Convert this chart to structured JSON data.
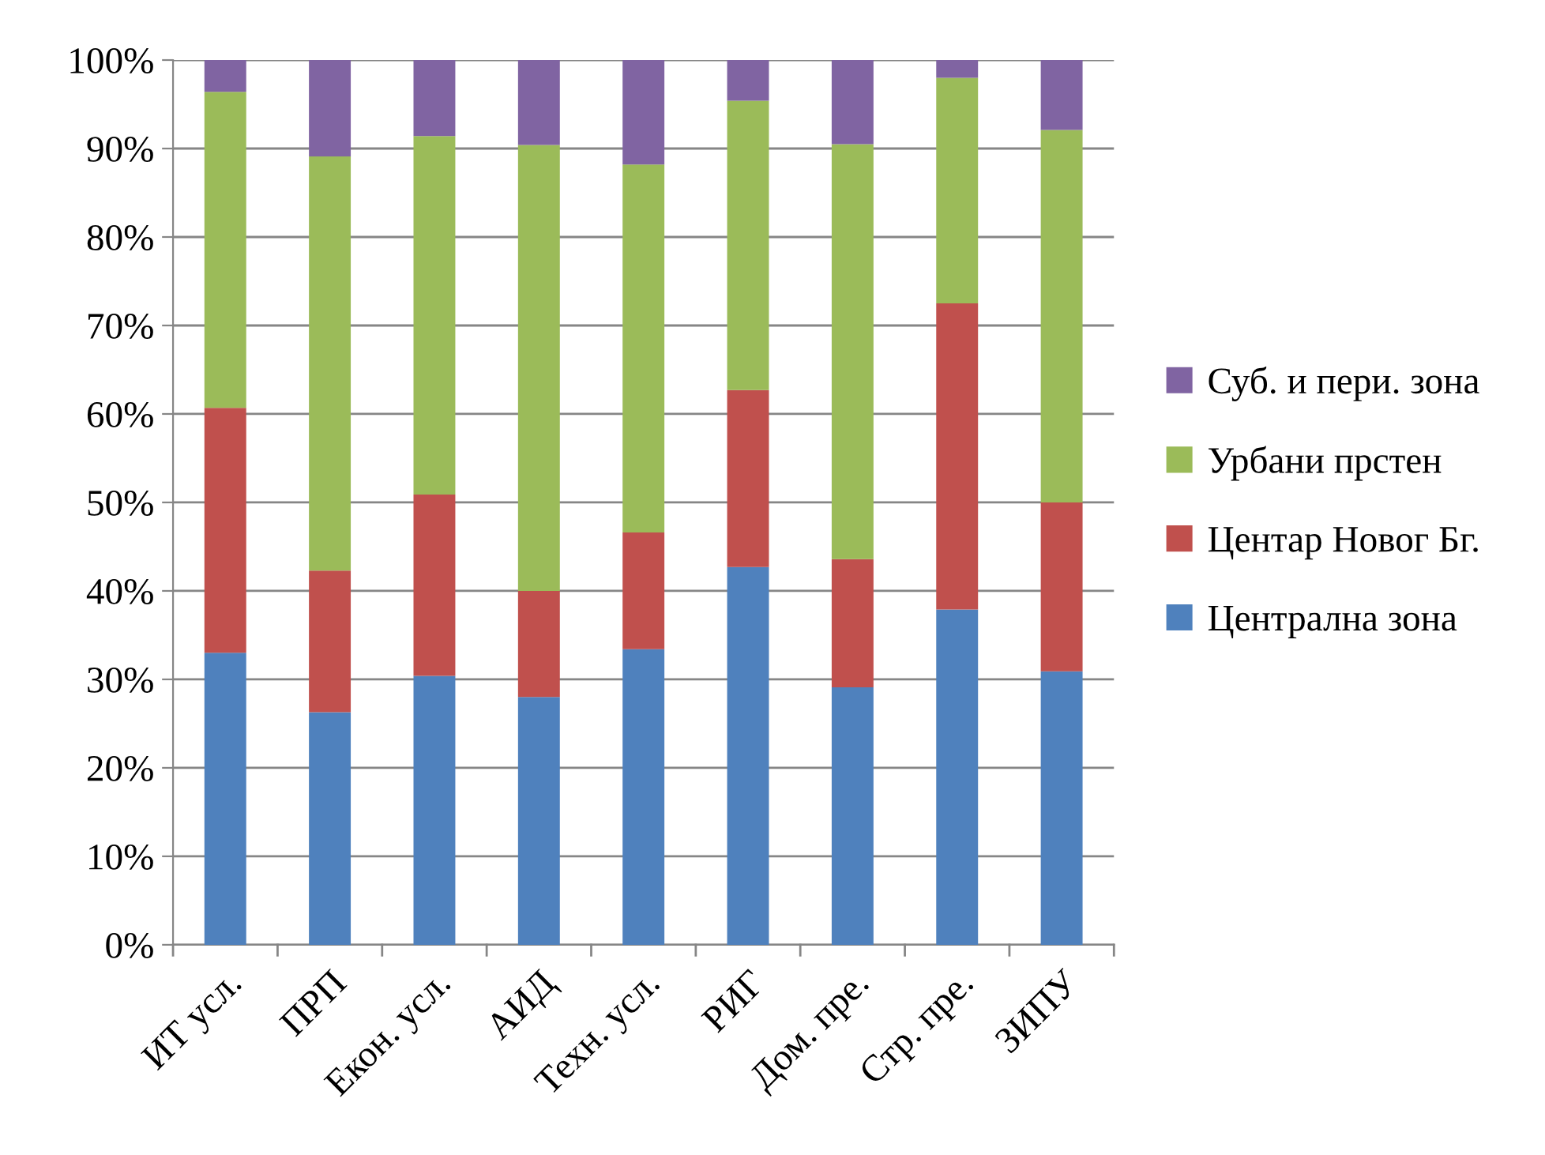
{
  "chart_data": {
    "type": "bar",
    "stacked": true,
    "categories": [
      "ИТ усл.",
      "ПРП",
      "Екон. усл.",
      "АИД",
      "Техн. усл.",
      "РИГ",
      "Дом. пре.",
      "Стр. пре.",
      "ЗИПУ"
    ],
    "series": [
      {
        "name": "Централна зона",
        "color": "#4f81bd",
        "values": [
          33.0,
          26.3,
          30.4,
          28.0,
          33.4,
          42.7,
          29.1,
          37.9,
          30.9
        ]
      },
      {
        "name": "Центар Новог Бг.",
        "color": "#c0504d",
        "values": [
          27.7,
          16.0,
          20.5,
          12.0,
          13.2,
          20.0,
          14.5,
          34.6,
          19.1
        ]
      },
      {
        "name": "Урбани прстен",
        "color": "#9bbb59",
        "values": [
          35.7,
          46.8,
          40.5,
          50.4,
          41.6,
          32.7,
          46.9,
          25.5,
          42.1
        ]
      },
      {
        "name": "Суб. и пери. зона",
        "color": "#8064a2",
        "values": [
          3.6,
          10.9,
          8.6,
          9.6,
          11.8,
          4.6,
          9.5,
          2.0,
          7.9
        ]
      }
    ],
    "ylim": [
      0,
      100
    ],
    "yticks": [
      {
        "value": 0,
        "label": "0%"
      },
      {
        "value": 10,
        "label": "10%"
      },
      {
        "value": 20,
        "label": "20%"
      },
      {
        "value": 30,
        "label": "30%"
      },
      {
        "value": 40,
        "label": "40%"
      },
      {
        "value": 50,
        "label": "50%"
      },
      {
        "value": 60,
        "label": "60%"
      },
      {
        "value": 70,
        "label": "70%"
      },
      {
        "value": 80,
        "label": "80%"
      },
      {
        "value": 90,
        "label": "90%"
      },
      {
        "value": 100,
        "label": "100%"
      }
    ],
    "grid": "y",
    "legend": "right"
  }
}
